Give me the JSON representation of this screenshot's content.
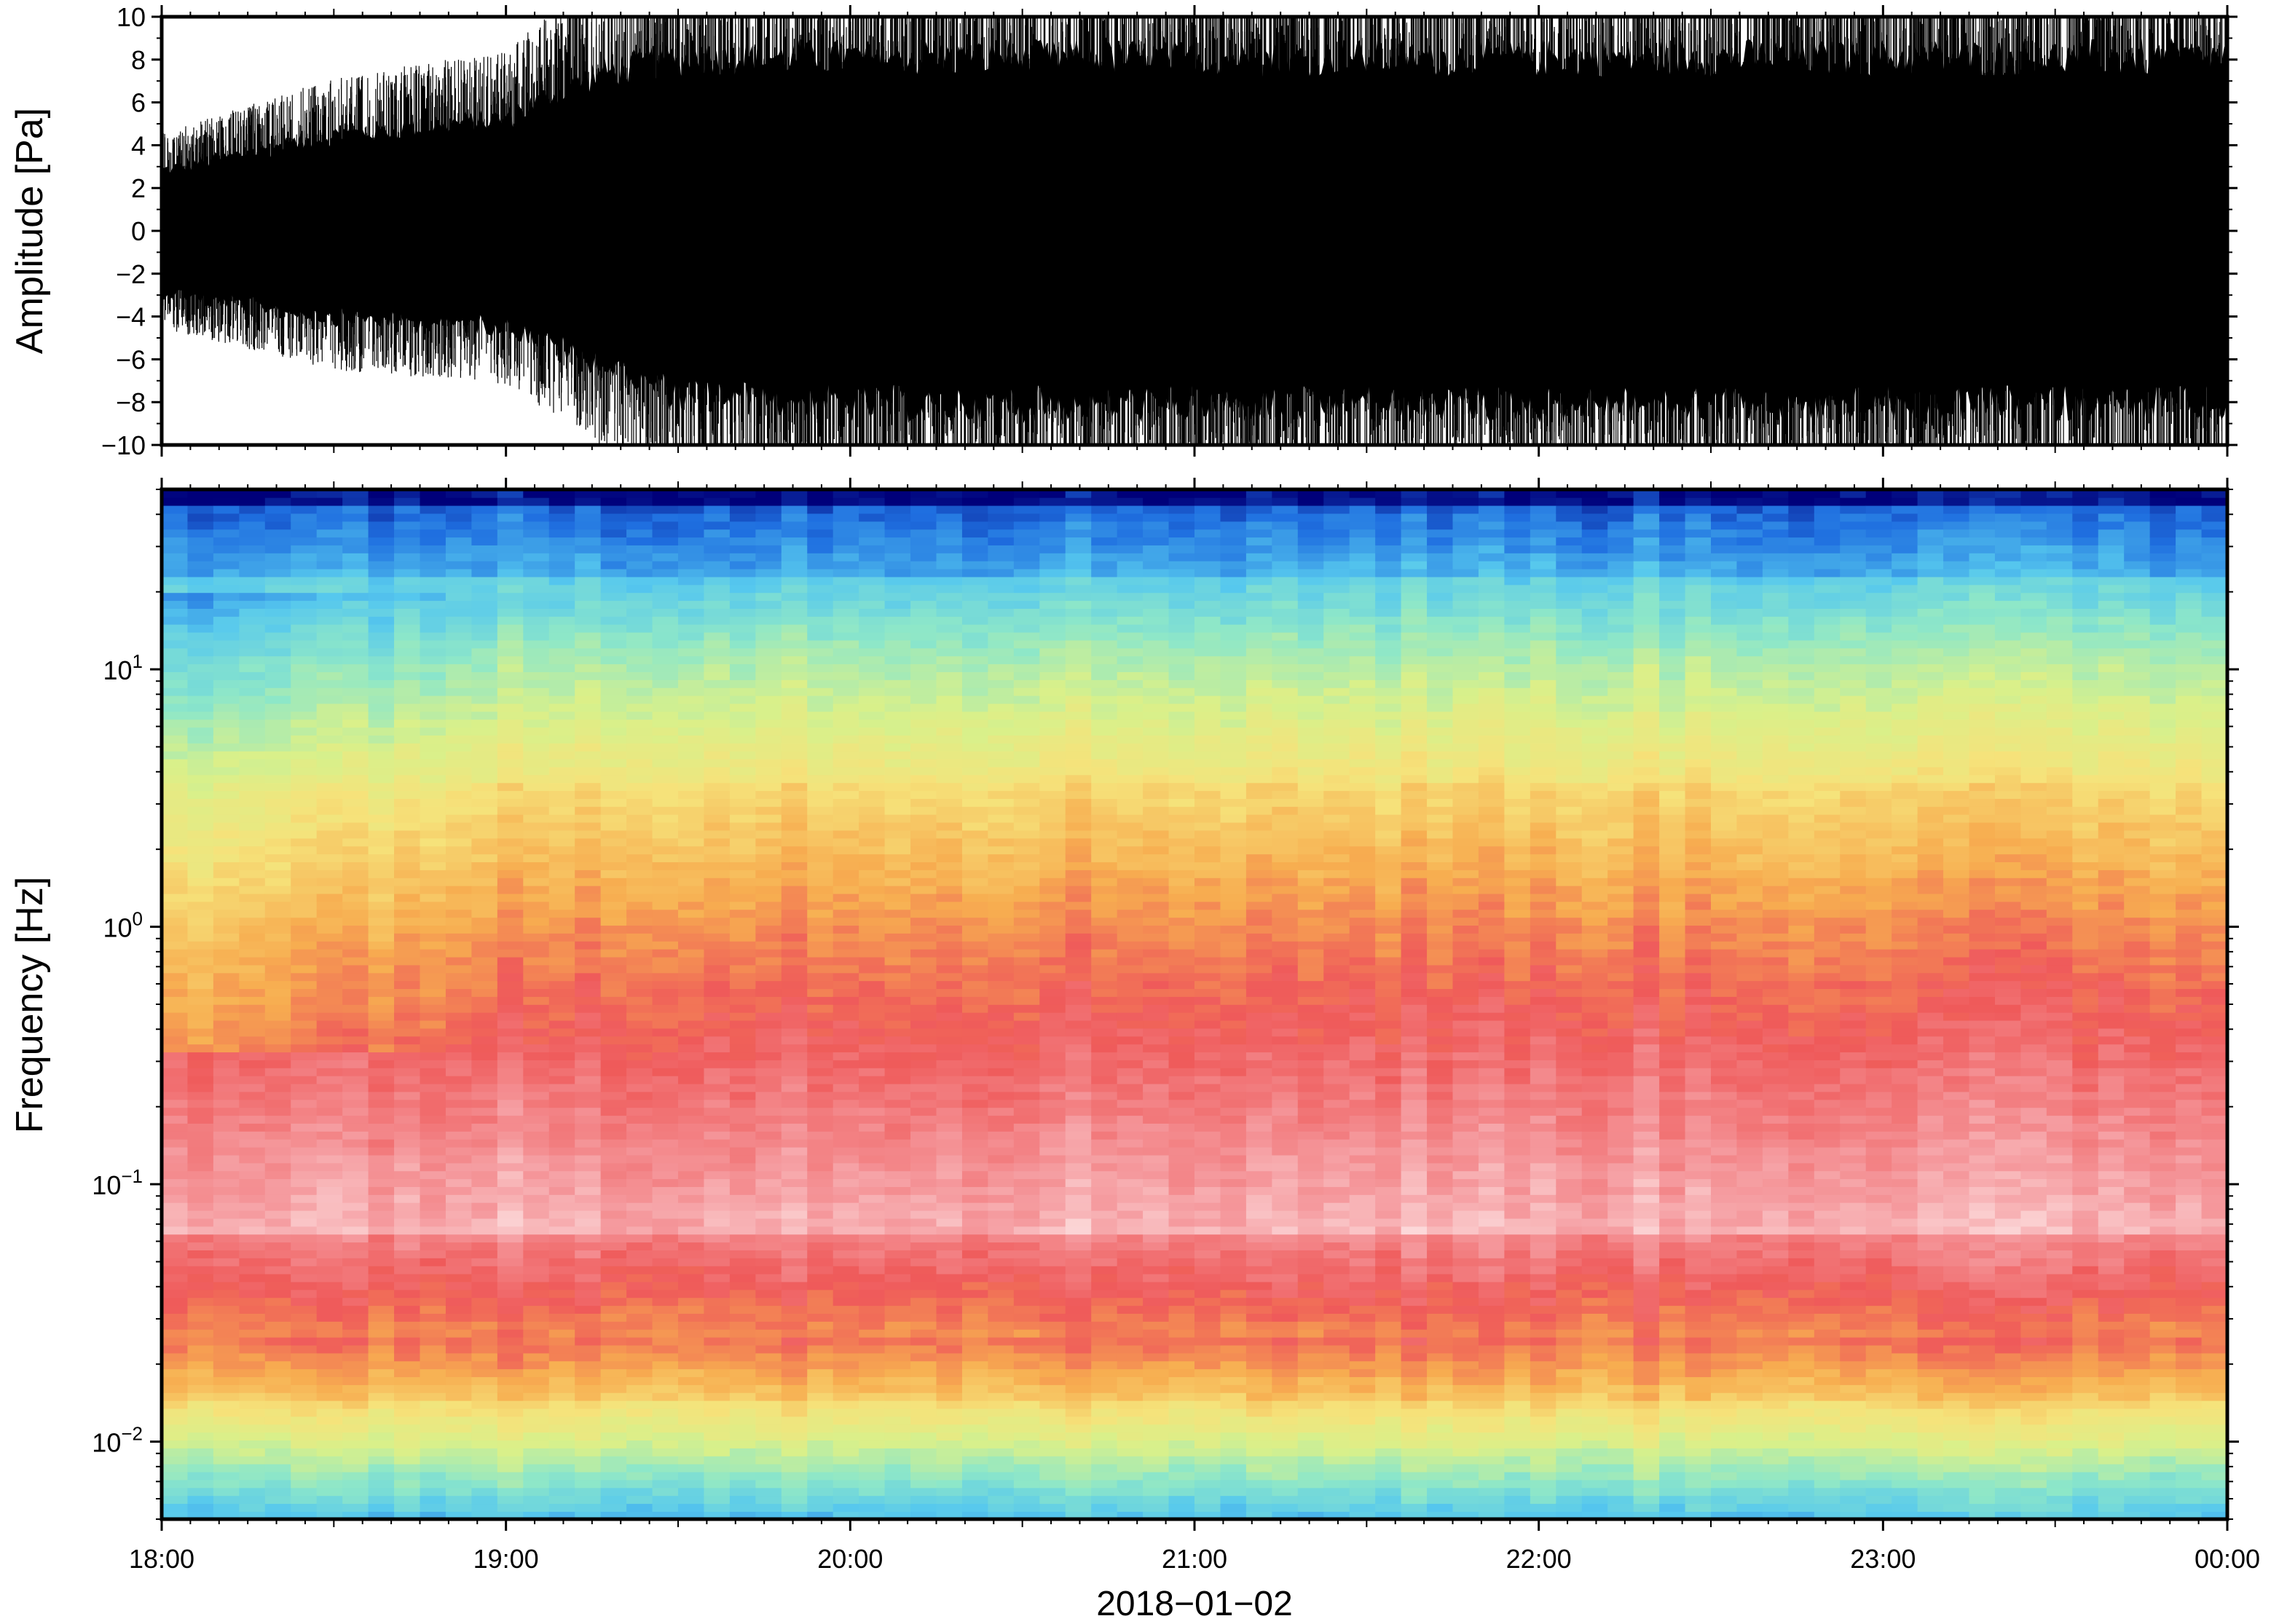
{
  "chart_data": [
    {
      "type": "line",
      "ylabel": "Amplitude [Pa]",
      "ylim": [
        -10,
        10
      ],
      "yticks": [
        "10",
        "8",
        "6",
        "4",
        "2",
        "0",
        "−2",
        "−4",
        "−6",
        "−8",
        "−10"
      ],
      "xlim": [
        "18:00",
        "00:00"
      ],
      "grid": false,
      "series": [
        {
          "color": "#000000",
          "time_hours": [
            18.0,
            18.5,
            19.0,
            19.25,
            19.5,
            20.0,
            21.0,
            22.0,
            23.0,
            24.0
          ],
          "envelope_upper": [
            3.5,
            5.5,
            6.5,
            9.0,
            10.0,
            10.0,
            10.0,
            10.0,
            10.0,
            10.0
          ],
          "envelope_lower": [
            -3.5,
            -5.0,
            -5.5,
            -7.5,
            -9.5,
            -10.0,
            -10.0,
            -10.0,
            -10.0,
            -10.0
          ]
        }
      ]
    },
    {
      "type": "heatmap",
      "ylabel": "Frequency [Hz]",
      "yscale": "log",
      "ylim": [
        0.005,
        50
      ],
      "yticks": [
        {
          "base": "10",
          "exp": "1"
        },
        {
          "base": "10",
          "exp": "0"
        },
        {
          "base": "10",
          "exp": "−1"
        },
        {
          "base": "10",
          "exp": "−2"
        }
      ],
      "colormap": [
        "#00007a",
        "#1f6fe0",
        "#56c8ee",
        "#8ee7c8",
        "#d9f08a",
        "#f6e27a",
        "#f7ad50",
        "#ef5a5a",
        "#f59a9e",
        "#fde4e4"
      ],
      "x_labels": [
        "18:00",
        "19:00",
        "20:00",
        "21:00",
        "22:00",
        "23:00",
        "00:00"
      ],
      "xlabel": "2018−01−02"
    }
  ]
}
